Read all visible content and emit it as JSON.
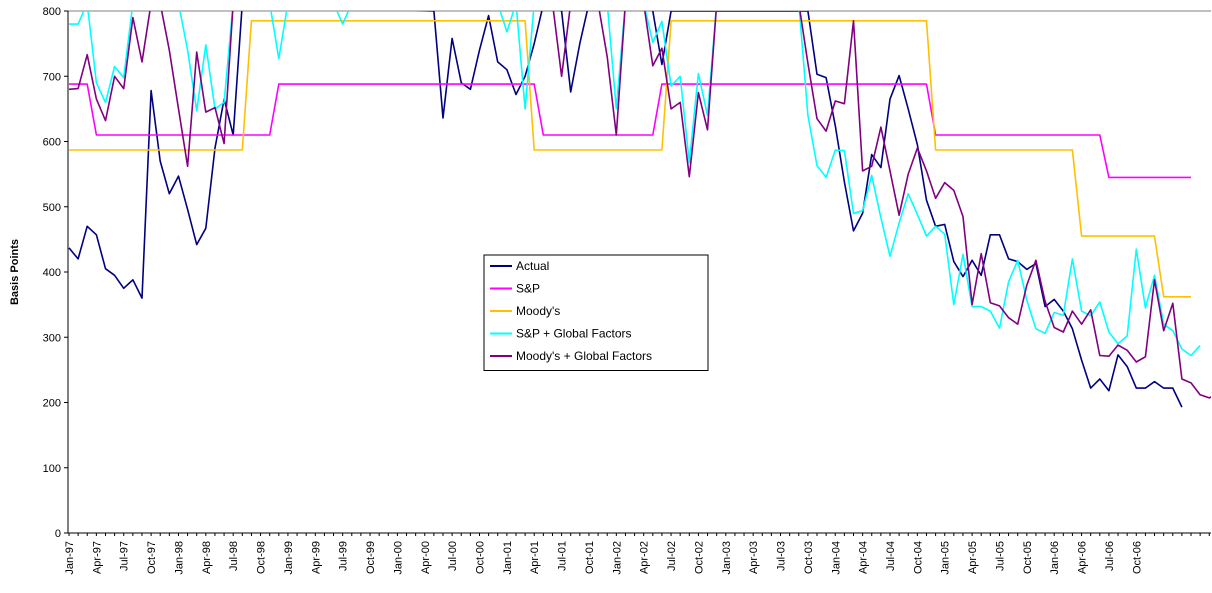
{
  "chart_data": {
    "type": "line",
    "ylabel": "Basis Points",
    "xlabel": "",
    "ylim": [
      0,
      800
    ],
    "yticks": [
      0,
      100,
      200,
      300,
      400,
      500,
      600,
      700,
      800
    ],
    "grid": "horizontal",
    "legend_position": "center",
    "x_tick_labels": [
      "Jan-97",
      "Apr-97",
      "Jul-97",
      "Oct-97",
      "Jan-98",
      "Apr-98",
      "Jul-98",
      "Oct-98",
      "Jan-99",
      "Apr-99",
      "Jul-99",
      "Oct-99",
      "Jan-00",
      "Apr-00",
      "Jul-00",
      "Oct-00",
      "Jan-01",
      "Apr-01",
      "Jul-01",
      "Oct-01",
      "Jan-02",
      "Apr-02",
      "Jul-02",
      "Oct-02",
      "Jan-03",
      "Apr-03",
      "Jul-03",
      "Oct-03",
      "Jan-04",
      "Apr-04",
      "Jul-04",
      "Oct-04",
      "Jan-05",
      "Apr-05",
      "Jul-05",
      "Oct-05",
      "Jan-06",
      "Apr-06",
      "Jul-06",
      "Oct-06"
    ],
    "x_tick_every_months": 3,
    "series": [
      {
        "name": "Actual",
        "color": "#000080",
        "points": [
          [
            0,
            437
          ],
          [
            1,
            420
          ],
          [
            2,
            470
          ],
          [
            3,
            457
          ],
          [
            4,
            405
          ],
          [
            5,
            395
          ],
          [
            6,
            375
          ],
          [
            7,
            388
          ],
          [
            8,
            360
          ],
          [
            9,
            678
          ],
          [
            10,
            570
          ],
          [
            11,
            520
          ],
          [
            12,
            547
          ],
          [
            13,
            496
          ],
          [
            14,
            442
          ],
          [
            15,
            467
          ],
          [
            16,
            590
          ],
          [
            17,
            665
          ],
          [
            18,
            610
          ],
          [
            19,
            812
          ],
          [
            40,
            800
          ],
          [
            41,
            636
          ],
          [
            42,
            758
          ],
          [
            43,
            690
          ],
          [
            44,
            680
          ],
          [
            45,
            740
          ],
          [
            46,
            793
          ],
          [
            47,
            722
          ],
          [
            48,
            710
          ],
          [
            49,
            672
          ],
          [
            50,
            700
          ],
          [
            51,
            750
          ],
          [
            52,
            810
          ],
          [
            54,
            800
          ],
          [
            55,
            676
          ],
          [
            56,
            750
          ],
          [
            57,
            812
          ],
          [
            63,
            812
          ],
          [
            64,
            800
          ],
          [
            65,
            718
          ],
          [
            66,
            800
          ],
          [
            79,
            800
          ],
          [
            80,
            800
          ],
          [
            81,
            800
          ],
          [
            82,
            703
          ],
          [
            83,
            698
          ],
          [
            84,
            624
          ],
          [
            85,
            538
          ],
          [
            86,
            463
          ],
          [
            87,
            490
          ],
          [
            88,
            580
          ],
          [
            89,
            560
          ],
          [
            90,
            665
          ],
          [
            91,
            701
          ],
          [
            92,
            650
          ],
          [
            93,
            595
          ],
          [
            94,
            510
          ],
          [
            95,
            470
          ],
          [
            96,
            473
          ],
          [
            97,
            416
          ],
          [
            98,
            393
          ],
          [
            99,
            418
          ],
          [
            100,
            395
          ],
          [
            101,
            457
          ],
          [
            102,
            457
          ],
          [
            103,
            420
          ],
          [
            104,
            416
          ],
          [
            105,
            404
          ],
          [
            106,
            413
          ],
          [
            107,
            347
          ],
          [
            108,
            358
          ],
          [
            109,
            340
          ],
          [
            110,
            313
          ],
          [
            111,
            265
          ],
          [
            112,
            222
          ],
          [
            113,
            236
          ],
          [
            114,
            218
          ],
          [
            115,
            273
          ],
          [
            116,
            255
          ],
          [
            117,
            222
          ],
          [
            118,
            222
          ],
          [
            119,
            232
          ],
          [
            120,
            222
          ],
          [
            121,
            222
          ],
          [
            122,
            193
          ]
        ]
      },
      {
        "name": "S&P",
        "color": "#FF00FF",
        "points": [
          [
            0,
            688
          ],
          [
            2,
            688
          ],
          [
            3,
            610
          ],
          [
            22,
            610
          ],
          [
            23,
            688
          ],
          [
            51,
            688
          ],
          [
            52,
            610
          ],
          [
            64,
            610
          ],
          [
            65,
            688
          ],
          [
            94,
            688
          ],
          [
            95,
            610
          ],
          [
            113,
            610
          ],
          [
            114,
            545
          ],
          [
            123,
            545
          ]
        ]
      },
      {
        "name": "Moody's",
        "color": "#FFC000",
        "points": [
          [
            0,
            587
          ],
          [
            19,
            587
          ],
          [
            20,
            785
          ],
          [
            50,
            785
          ],
          [
            51,
            587
          ],
          [
            65,
            587
          ],
          [
            66,
            785
          ],
          [
            94,
            785
          ],
          [
            95,
            587
          ],
          [
            110,
            587
          ],
          [
            111,
            455
          ],
          [
            119,
            455
          ],
          [
            120,
            362
          ],
          [
            123,
            362
          ]
        ]
      },
      {
        "name": "S&P + Global Factors",
        "color": "#00FFFF",
        "points": [
          [
            0,
            780
          ],
          [
            1,
            780
          ],
          [
            2,
            812
          ],
          [
            3,
            690
          ],
          [
            4,
            660
          ],
          [
            5,
            715
          ],
          [
            6,
            698
          ],
          [
            7,
            812
          ],
          [
            12,
            812
          ],
          [
            13,
            740
          ],
          [
            14,
            647
          ],
          [
            15,
            748
          ],
          [
            16,
            650
          ],
          [
            17,
            660
          ],
          [
            18,
            812
          ],
          [
            22,
            812
          ],
          [
            23,
            727
          ],
          [
            24,
            812
          ],
          [
            29,
            812
          ],
          [
            30,
            780
          ],
          [
            31,
            812
          ],
          [
            47,
            812
          ],
          [
            48,
            768
          ],
          [
            49,
            812
          ],
          [
            50,
            650
          ],
          [
            51,
            812
          ],
          [
            59,
            812
          ],
          [
            60,
            650
          ],
          [
            61,
            812
          ],
          [
            63,
            812
          ],
          [
            64,
            752
          ],
          [
            65,
            784
          ],
          [
            66,
            685
          ],
          [
            67,
            700
          ],
          [
            68,
            568
          ],
          [
            69,
            704
          ],
          [
            70,
            640
          ],
          [
            71,
            812
          ],
          [
            80,
            812
          ],
          [
            81,
            640
          ],
          [
            82,
            563
          ],
          [
            83,
            545
          ],
          [
            84,
            587
          ],
          [
            85,
            586
          ],
          [
            86,
            490
          ],
          [
            87,
            494
          ],
          [
            88,
            548
          ],
          [
            89,
            483
          ],
          [
            90,
            424
          ],
          [
            91,
            475
          ],
          [
            92,
            520
          ],
          [
            93,
            488
          ],
          [
            94,
            455
          ],
          [
            95,
            470
          ],
          [
            96,
            458
          ],
          [
            97,
            350
          ],
          [
            98,
            427
          ],
          [
            99,
            347
          ],
          [
            100,
            347
          ],
          [
            101,
            340
          ],
          [
            102,
            314
          ],
          [
            103,
            385
          ],
          [
            104,
            418
          ],
          [
            105,
            357
          ],
          [
            106,
            313
          ],
          [
            107,
            306
          ],
          [
            108,
            338
          ],
          [
            109,
            334
          ],
          [
            110,
            420
          ],
          [
            111,
            340
          ],
          [
            112,
            333
          ],
          [
            113,
            354
          ],
          [
            114,
            308
          ],
          [
            115,
            290
          ],
          [
            116,
            302
          ],
          [
            117,
            435
          ],
          [
            118,
            345
          ],
          [
            119,
            395
          ],
          [
            120,
            320
          ],
          [
            121,
            310
          ],
          [
            122,
            282
          ],
          [
            123,
            272
          ],
          [
            124,
            287
          ]
        ]
      },
      {
        "name": "Moody's + Global Factors",
        "color": "#800080",
        "points": [
          [
            0,
            680
          ],
          [
            1,
            681
          ],
          [
            2,
            733
          ],
          [
            3,
            665
          ],
          [
            4,
            632
          ],
          [
            5,
            700
          ],
          [
            6,
            681
          ],
          [
            7,
            790
          ],
          [
            8,
            722
          ],
          [
            9,
            812
          ],
          [
            10,
            812
          ],
          [
            11,
            740
          ],
          [
            12,
            650
          ],
          [
            13,
            562
          ],
          [
            14,
            737
          ],
          [
            15,
            645
          ],
          [
            16,
            652
          ],
          [
            17,
            597
          ],
          [
            18,
            812
          ],
          [
            52,
            812
          ],
          [
            53,
            812
          ],
          [
            54,
            700
          ],
          [
            55,
            812
          ],
          [
            58,
            812
          ],
          [
            59,
            730
          ],
          [
            60,
            610
          ],
          [
            61,
            812
          ],
          [
            63,
            812
          ],
          [
            64,
            716
          ],
          [
            65,
            743
          ],
          [
            66,
            650
          ],
          [
            67,
            660
          ],
          [
            68,
            546
          ],
          [
            69,
            675
          ],
          [
            70,
            618
          ],
          [
            71,
            812
          ],
          [
            80,
            812
          ],
          [
            81,
            720
          ],
          [
            82,
            635
          ],
          [
            83,
            616
          ],
          [
            84,
            662
          ],
          [
            85,
            658
          ],
          [
            86,
            785
          ],
          [
            87,
            555
          ],
          [
            88,
            562
          ],
          [
            89,
            622
          ],
          [
            90,
            555
          ],
          [
            91,
            487
          ],
          [
            92,
            550
          ],
          [
            93,
            590
          ],
          [
            94,
            555
          ],
          [
            95,
            513
          ],
          [
            96,
            537
          ],
          [
            97,
            525
          ],
          [
            98,
            485
          ],
          [
            99,
            350
          ],
          [
            100,
            428
          ],
          [
            101,
            353
          ],
          [
            102,
            348
          ],
          [
            103,
            330
          ],
          [
            104,
            320
          ],
          [
            105,
            380
          ],
          [
            106,
            418
          ],
          [
            107,
            355
          ],
          [
            108,
            315
          ],
          [
            109,
            308
          ],
          [
            110,
            340
          ],
          [
            111,
            320
          ],
          [
            112,
            342
          ],
          [
            113,
            272
          ],
          [
            114,
            271
          ],
          [
            115,
            288
          ],
          [
            116,
            280
          ],
          [
            117,
            262
          ],
          [
            118,
            270
          ],
          [
            119,
            388
          ],
          [
            120,
            310
          ],
          [
            121,
            352
          ],
          [
            122,
            236
          ],
          [
            123,
            230
          ],
          [
            124,
            212
          ],
          [
            125,
            207
          ],
          [
            126,
            215
          ]
        ]
      }
    ]
  }
}
